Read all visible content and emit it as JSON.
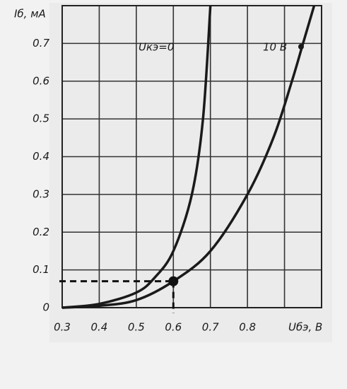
{
  "chart_data": {
    "type": "line",
    "y_label": "Iб, мА",
    "x_label": "Uбэ, В",
    "xlim": [
      0.3,
      1.0
    ],
    "ylim": [
      0,
      0.8
    ],
    "xticks": [
      0.3,
      0.4,
      0.5,
      0.6,
      0.7,
      0.8
    ],
    "xgrid": [
      0.9
    ],
    "yticks": [
      0,
      0.1,
      0.2,
      0.3,
      0.4,
      0.5,
      0.6,
      0.7
    ],
    "grid": true,
    "series": [
      {
        "name": "Uкэ=0",
        "color": "#1a1a1a",
        "x": [
          0.3,
          0.4,
          0.5,
          0.55,
          0.6,
          0.65,
          0.68,
          0.7
        ],
        "y": [
          0,
          0.01,
          0.04,
          0.08,
          0.15,
          0.3,
          0.5,
          0.8
        ]
      },
      {
        "name": "10 В",
        "color": "#1a1a1a",
        "x": [
          0.3,
          0.4,
          0.5,
          0.6,
          0.7,
          0.8,
          0.87,
          0.92,
          0.95,
          0.98
        ],
        "y": [
          0,
          0.005,
          0.02,
          0.07,
          0.15,
          0.3,
          0.45,
          0.6,
          0.7,
          0.8
        ]
      }
    ],
    "operating_point": {
      "x": 0.6,
      "y": 0.07
    }
  }
}
